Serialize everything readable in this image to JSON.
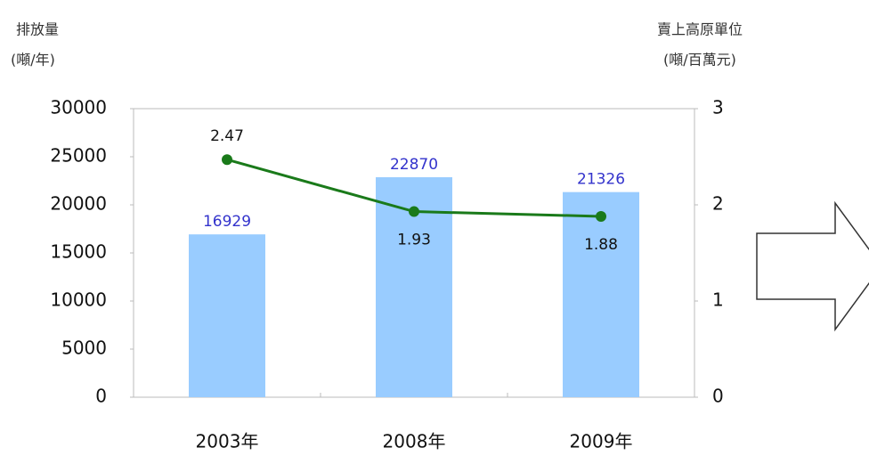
{
  "chart_data": {
    "type": "bar",
    "y_label": [
      "排放量",
      "(噸/年)"
    ],
    "y2_label": [
      "賣上高原單位",
      "(噸/百萬元)"
    ],
    "categories": [
      "2003年",
      "2008年",
      "2009年"
    ],
    "series": [
      {
        "type": "bar",
        "color": "#99ccff",
        "label_color": "#3333cc",
        "values": [
          16929,
          22870,
          21326
        ]
      },
      {
        "type": "line",
        "axis": "y2",
        "color": "#1a7a1a",
        "values": [
          2.47,
          1.93,
          1.88
        ]
      }
    ],
    "ylim": [
      0,
      30000
    ],
    "yticks": [
      0,
      5000,
      10000,
      15000,
      20000,
      25000,
      30000
    ],
    "y2lim": [
      0,
      3
    ],
    "y2ticks": [
      0,
      1,
      2,
      3
    ]
  }
}
